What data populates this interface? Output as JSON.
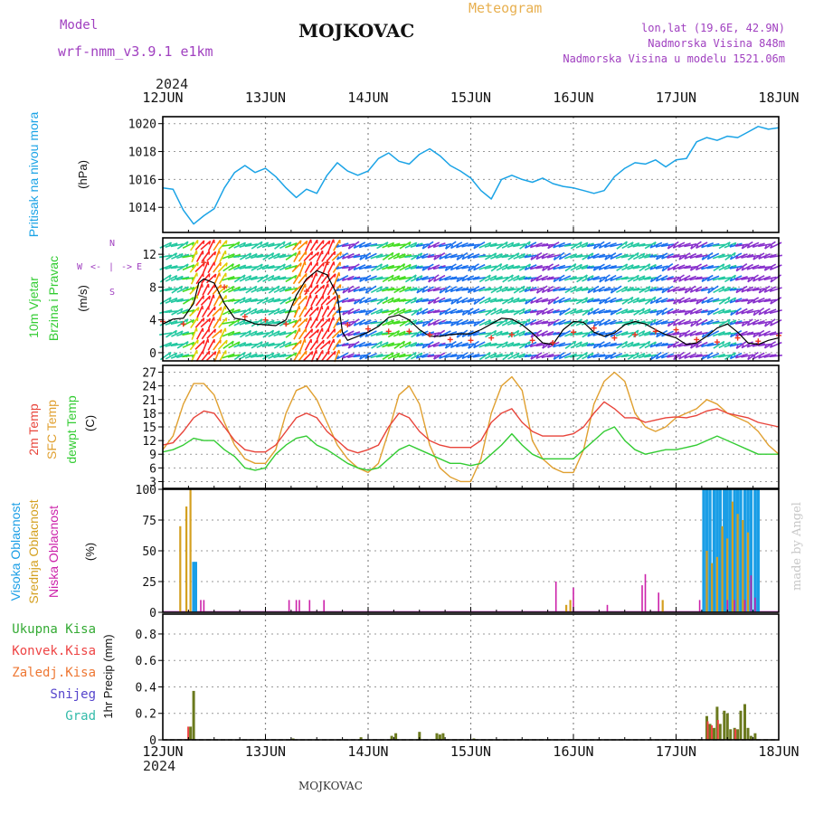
{
  "header": {
    "meteogram": "Meteogram",
    "model_label": "Model",
    "model_name": "wrf-nmm_v3.9.1 e1km",
    "station": "MOJKOVAC",
    "lonlat": "lon,lat (19.6E, 42.9N)",
    "elevation": "Nadmorska Visina 848m",
    "model_elevation": "Nadmorska Visina u modelu 1521.06m",
    "watermark": "made by Angel",
    "footer_station": "MOJKOVAC",
    "year": "2024"
  },
  "colors": {
    "pressure": "#1aa3e6",
    "temp": "#e8443a",
    "sfc_temp": "#e0a030",
    "dewpt": "#33cc33",
    "high_cloud": "#1a9ee6",
    "mid_cloud": "#d4a020",
    "low_cloud": "#cc22aa",
    "total_precip": "#33aa33",
    "conv_precip": "#ee4444",
    "frz_precip": "#ee7733",
    "snow": "#5544cc",
    "hail": "#33bbaa",
    "purple_text": "#a040c0"
  },
  "chart_data": [
    {
      "type": "line",
      "name": "pressure",
      "title": "",
      "ylabel_left": "Pritisak na nivou mora",
      "ylabel_unit": "(hPa)",
      "x_tick_labels": [
        "12JUN",
        "13JUN",
        "14JUN",
        "15JUN",
        "16JUN",
        "17JUN",
        "18JUN"
      ],
      "ylim": [
        1012.2,
        1020.5
      ],
      "yticks": [
        1014,
        1016,
        1018,
        1020
      ],
      "series": [
        {
          "x": [
            0,
            0.1,
            0.2,
            0.3,
            0.4,
            0.5,
            0.6,
            0.7,
            0.8,
            0.9,
            1.0,
            1.1,
            1.2,
            1.3,
            1.4,
            1.5,
            1.6,
            1.7,
            1.8,
            1.9,
            2.0,
            2.1,
            2.2,
            2.3,
            2.4,
            2.5,
            2.6,
            2.7,
            2.8,
            2.9,
            3.0,
            3.1,
            3.2,
            3.3,
            3.4,
            3.5,
            3.6,
            3.7,
            3.8,
            3.9,
            4.0,
            4.1,
            4.2,
            4.3,
            4.4,
            4.5,
            4.6,
            4.7,
            4.8,
            4.9,
            5.0,
            5.1,
            5.2,
            5.3,
            5.4,
            5.5,
            5.6,
            5.7,
            5.8,
            5.9,
            6.0
          ],
          "values": [
            1015.4,
            1015.3,
            1013.8,
            1012.8,
            1013.4,
            1013.9,
            1015.4,
            1016.5,
            1017.0,
            1016.5,
            1016.8,
            1016.2,
            1015.4,
            1014.7,
            1015.3,
            1015.0,
            1016.3,
            1017.2,
            1016.6,
            1016.3,
            1016.6,
            1017.5,
            1017.9,
            1017.3,
            1017.1,
            1017.8,
            1018.2,
            1017.7,
            1017.0,
            1016.6,
            1016.1,
            1015.2,
            1014.6,
            1016.0,
            1016.3,
            1016.0,
            1015.8,
            1016.1,
            1015.7,
            1015.5,
            1015.4,
            1015.2,
            1015.0,
            1015.2,
            1016.2,
            1016.8,
            1017.2,
            1017.1,
            1017.4,
            1016.9,
            1017.4,
            1017.5,
            1018.7,
            1019.0,
            1018.8,
            1019.1,
            1019.0,
            1019.4,
            1019.8,
            1019.6,
            1019.7
          ]
        }
      ]
    },
    {
      "type": "line",
      "name": "wind",
      "title": "",
      "ylabel_left": [
        "10m Vjetar",
        "Brzina i Pravac"
      ],
      "ylabel_unit": "(m/s)",
      "compass_labels": [
        "W",
        "E",
        "N",
        "S",
        "<-",
        "->",
        "|"
      ],
      "ylim": [
        -1,
        14
      ],
      "yticks": [
        0,
        4,
        8,
        12
      ],
      "series": [
        {
          "name": "speed",
          "x": [
            0,
            0.1,
            0.2,
            0.3,
            0.35,
            0.4,
            0.5,
            0.6,
            0.7,
            0.8,
            0.9,
            1.0,
            1.1,
            1.2,
            1.3,
            1.4,
            1.5,
            1.6,
            1.7,
            1.75,
            1.8,
            1.9,
            2.0,
            2.1,
            2.2,
            2.3,
            2.4,
            2.5,
            2.6,
            2.7,
            2.8,
            2.9,
            3.0,
            3.1,
            3.2,
            3.3,
            3.4,
            3.5,
            3.6,
            3.7,
            3.8,
            3.9,
            4.0,
            4.1,
            4.2,
            4.3,
            4.4,
            4.5,
            4.6,
            4.7,
            4.8,
            4.9,
            5.0,
            5.1,
            5.2,
            5.3,
            5.4,
            5.5,
            5.6,
            5.7,
            5.8,
            5.9,
            6.0
          ],
          "values": [
            3.5,
            4.1,
            4.2,
            6.0,
            8.5,
            9.0,
            8.5,
            6.0,
            4.2,
            4.0,
            3.5,
            3.4,
            3.3,
            4.0,
            7.0,
            9.0,
            10.0,
            9.5,
            7.0,
            2.5,
            1.5,
            2.0,
            2.5,
            3.2,
            4.3,
            4.6,
            4.0,
            2.8,
            2.0,
            2.0,
            2.2,
            2.3,
            2.3,
            2.8,
            3.5,
            4.2,
            4.1,
            3.4,
            2.4,
            1.2,
            1.0,
            2.8,
            3.8,
            3.7,
            2.5,
            2.0,
            2.4,
            3.4,
            3.8,
            3.5,
            2.8,
            2.2,
            1.8,
            1.0,
            1.2,
            2.0,
            3.0,
            3.5,
            2.5,
            1.2,
            1.0,
            1.5,
            1.8
          ]
        },
        {
          "name": "gust_marks",
          "x": [
            0,
            0.2,
            0.4,
            0.6,
            0.8,
            1.0,
            1.2,
            1.4,
            1.6,
            1.8,
            2.0,
            2.2,
            2.4,
            2.6,
            2.8,
            3.0,
            3.2,
            3.4,
            3.6,
            3.8,
            4.0,
            4.2,
            4.4,
            4.6,
            4.8,
            5.0,
            5.2,
            5.4,
            5.6,
            5.8,
            6.0
          ],
          "values": [
            3.8,
            3.5,
            11,
            8,
            4.4,
            4.0,
            3.5,
            7.5,
            11,
            3.4,
            2.9,
            2.6,
            2.6,
            2.2,
            1.6,
            1.5,
            1.8,
            2.2,
            1.5,
            1.2,
            2.5,
            3.0,
            1.8,
            2.2,
            2.6,
            2.8,
            1.6,
            1.3,
            1.8,
            1.4,
            2.1
          ]
        }
      ]
    },
    {
      "type": "line",
      "name": "temperature",
      "title": "",
      "ylabel_left": [
        "2m Temp",
        "SFC Temp",
        "dewpt Temp"
      ],
      "ylabel_unit": "(C)",
      "ylim": [
        1.5,
        28.5
      ],
      "yticks": [
        3,
        6,
        9,
        12,
        15,
        18,
        21,
        24,
        27
      ],
      "x": [
        0,
        0.1,
        0.2,
        0.3,
        0.4,
        0.5,
        0.6,
        0.7,
        0.8,
        0.9,
        1.0,
        1.1,
        1.2,
        1.3,
        1.4,
        1.5,
        1.6,
        1.7,
        1.8,
        1.9,
        2.0,
        2.1,
        2.2,
        2.3,
        2.4,
        2.5,
        2.6,
        2.7,
        2.8,
        2.9,
        3.0,
        3.1,
        3.2,
        3.3,
        3.4,
        3.5,
        3.6,
        3.7,
        3.8,
        3.9,
        4.0,
        4.1,
        4.2,
        4.3,
        4.4,
        4.5,
        4.6,
        4.7,
        4.8,
        4.9,
        5.0,
        5.1,
        5.2,
        5.3,
        5.4,
        5.5,
        5.6,
        5.7,
        5.8,
        5.9,
        6.0
      ],
      "series": [
        {
          "name": "2m Temp",
          "values": [
            11,
            11.5,
            14,
            17,
            18.5,
            18,
            15,
            12,
            10,
            9.5,
            9.5,
            11,
            14,
            17,
            18,
            17,
            14,
            12,
            10,
            9.3,
            10,
            11,
            15,
            18,
            17,
            14,
            12,
            11,
            10.5,
            10.5,
            10.5,
            12,
            16,
            18,
            19,
            16,
            14,
            13,
            13,
            13,
            13.5,
            15,
            18,
            20.5,
            19,
            17,
            17,
            16,
            16.5,
            17,
            17.2,
            17,
            17.5,
            18.5,
            19,
            18,
            17.5,
            17,
            16,
            15.5,
            15
          ]
        },
        {
          "name": "SFC Temp",
          "values": [
            10,
            13,
            20,
            24.5,
            24.5,
            22,
            16,
            11,
            8,
            7,
            7,
            10,
            18,
            23,
            24,
            21,
            16,
            11,
            8,
            6,
            5,
            7,
            14,
            22,
            24,
            20,
            11,
            6,
            4,
            3,
            3,
            8,
            18,
            24,
            26,
            23,
            12,
            8,
            6,
            5,
            5,
            10,
            20,
            25,
            27,
            25,
            18,
            15,
            14,
            15,
            17,
            18,
            19,
            21,
            20,
            18,
            17,
            16,
            14,
            11,
            9
          ]
        },
        {
          "name": "dewpt Temp",
          "values": [
            9.5,
            10,
            11,
            12.5,
            12,
            12,
            10,
            8.5,
            6,
            5.5,
            6,
            9,
            11,
            12.5,
            13,
            11,
            10,
            8.5,
            7,
            6,
            5.5,
            6,
            8,
            10,
            11,
            10,
            9,
            8,
            7,
            7,
            6.5,
            7,
            9,
            11,
            13.5,
            11,
            9,
            8,
            8,
            8,
            8,
            10,
            12,
            14,
            15,
            12,
            10,
            9,
            9.5,
            10,
            10,
            10.5,
            11,
            12,
            13,
            12,
            11,
            10,
            9,
            9,
            9
          ]
        }
      ]
    },
    {
      "type": "bar",
      "name": "cloud",
      "title": "",
      "ylabel_left": [
        "Visoka Oblacnost",
        "Srednja Oblacnost",
        "Niska Oblacnost"
      ],
      "ylabel_unit": "(%)",
      "ylim": [
        0,
        100
      ],
      "yticks": [
        0,
        25,
        50,
        75,
        100
      ],
      "series": [
        {
          "name": "Visoka Oblacnost",
          "x": [
            0.3,
            0.32,
            5.27,
            5.3,
            5.33,
            5.37,
            5.4,
            5.43,
            5.47,
            5.5,
            5.53,
            5.57,
            5.6,
            5.63,
            5.67,
            5.7,
            5.73,
            5.77,
            5.8
          ],
          "values": [
            41,
            41,
            100,
            100,
            100,
            100,
            100,
            100,
            100,
            100,
            100,
            100,
            100,
            100,
            100,
            100,
            100,
            100,
            100
          ]
        },
        {
          "name": "Srednja Oblacnost",
          "x": [
            0.17,
            0.23,
            0.27,
            3.93,
            3.97,
            4.87,
            5.3,
            5.35,
            5.4,
            5.45,
            5.5,
            5.55,
            5.6,
            5.65,
            5.7
          ],
          "values": [
            70,
            86,
            100,
            6,
            10,
            10,
            50,
            40,
            45,
            70,
            60,
            90,
            80,
            75,
            65
          ]
        },
        {
          "name": "Niska Oblacnost",
          "x": [
            0.37,
            0.4,
            1.23,
            1.3,
            1.33,
            1.43,
            1.57,
            3.83,
            4.0,
            4.33,
            4.67,
            4.7,
            4.83,
            5.23,
            5.5,
            5.57,
            5.67,
            5.67,
            5.73,
            5.77
          ],
          "values": [
            10,
            10,
            10,
            10,
            10,
            10,
            10,
            25,
            20,
            6,
            22,
            31,
            16,
            10,
            10,
            10,
            10,
            10,
            30,
            12
          ]
        }
      ]
    },
    {
      "type": "bar",
      "name": "precip",
      "title": "",
      "ylabel_left": [
        "Ukupna Kisa",
        "Konvek.Kisa",
        "Zaledj.Kisa",
        "Snijeg",
        "Grad"
      ],
      "ylabel_unit": "1hr Precip (mm)",
      "ylim": [
        0,
        0.95
      ],
      "yticks": [
        0,
        0.2,
        0.4,
        0.6,
        0.8
      ],
      "series": [
        {
          "name": "Ukupna Kisa",
          "x": [
            0.27,
            0.3,
            1.27,
            1.93,
            2.23,
            2.27,
            2.5,
            2.67,
            2.7,
            2.73,
            3.03,
            5.3,
            5.33,
            5.37,
            5.4,
            5.43,
            5.47,
            5.5,
            5.53,
            5.57,
            5.6,
            5.63,
            5.67,
            5.7,
            5.73,
            5.77
          ],
          "values": [
            0.1,
            0.37,
            0.01,
            0.02,
            0.03,
            0.05,
            0.06,
            0.05,
            0.04,
            0.05,
            0.01,
            0.18,
            0.12,
            0.09,
            0.25,
            0.12,
            0.22,
            0.2,
            0.08,
            0.09,
            0.08,
            0.22,
            0.27,
            0.09,
            0.03,
            0.05
          ]
        },
        {
          "name": "Konvek.Kisa",
          "x": [
            0.27,
            5.33,
            5.37,
            5.43,
            5.6
          ],
          "values": [
            0.1,
            0.14,
            0.11,
            0.15,
            0.08
          ]
        }
      ]
    }
  ]
}
